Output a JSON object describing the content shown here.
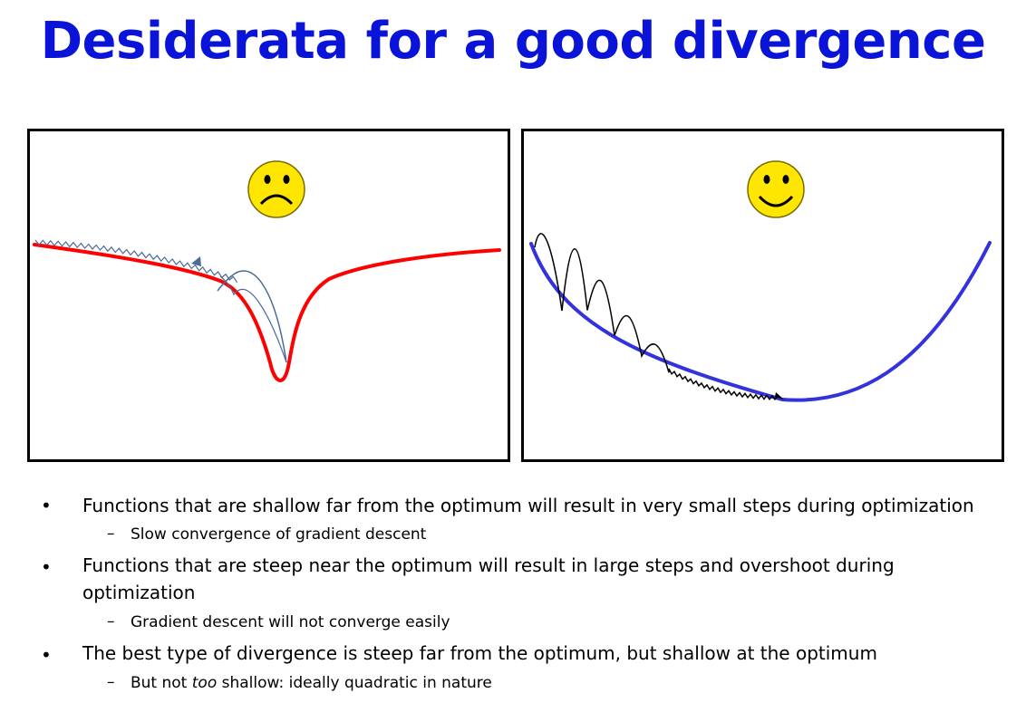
{
  "slide": {
    "title": "Desiderata for a good divergence",
    "left_panel": {
      "face_icon": "sad-face",
      "curve_color": "#ff0000",
      "path_color": "#4a6a9a"
    },
    "right_panel": {
      "face_icon": "happy-face",
      "curve_color": "#3333dd",
      "path_color": "#000000"
    },
    "bullet_char": "•",
    "dash_char": "–",
    "bullets": [
      {
        "text": "Functions that are shallow far from the optimum will result in very small steps during optimization",
        "sub": "Slow convergence of gradient descent"
      },
      {
        "text_line1": "Functions that are steep near the optimum will result in large steps and overshoot during",
        "text_line2": "optimization",
        "sub": "Gradient descent will not converge easily"
      },
      {
        "text": "The best type of divergence is steep far from the optimum, but shallow at the optimum",
        "sub_pre": "But not ",
        "sub_em": "too",
        "sub_post": " shallow: ideally quadratic in nature"
      }
    ]
  }
}
